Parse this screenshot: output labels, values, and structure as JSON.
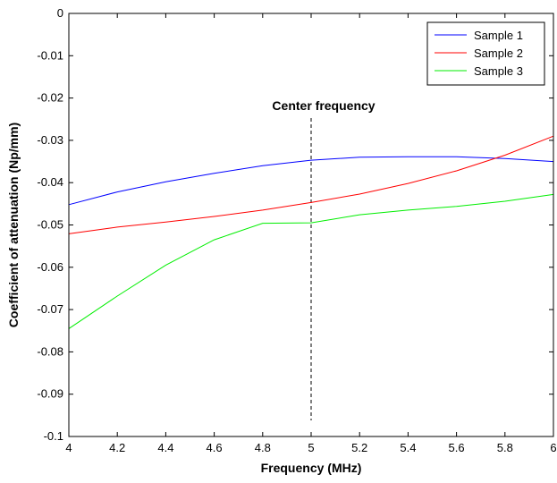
{
  "chart_data": {
    "type": "line",
    "xlabel": "Frequency (MHz)",
    "ylabel": "Coefficient of attenuation (Np/mm)",
    "xlim": [
      4,
      6
    ],
    "ylim": [
      -0.1,
      0
    ],
    "x_ticks": [
      4,
      4.2,
      4.4,
      4.6,
      4.8,
      5,
      5.2,
      5.4,
      5.6,
      5.8,
      6
    ],
    "x_tick_labels": [
      "4",
      "4.2",
      "4.4",
      "4.6",
      "4.8",
      "5",
      "5.2",
      "5.4",
      "5.6",
      "5.8",
      "6"
    ],
    "y_ticks": [
      0,
      -0.01,
      -0.02,
      -0.03,
      -0.04,
      -0.05,
      -0.06,
      -0.07,
      -0.08,
      -0.09,
      -0.1
    ],
    "y_tick_labels": [
      "0",
      "-0.01",
      "-0.02",
      "-0.03",
      "-0.04",
      "-0.05",
      "-0.06",
      "-0.07",
      "-0.08",
      "-0.09",
      "-0.1"
    ],
    "grid": false,
    "legend_position": "top-right",
    "x": [
      4.0,
      4.2,
      4.4,
      4.6,
      4.8,
      5.0,
      5.2,
      5.4,
      5.6,
      5.8,
      6.0
    ],
    "series": [
      {
        "name": "Sample 1",
        "color": "#0000ff",
        "values": [
          -0.0452,
          -0.0422,
          -0.0398,
          -0.0378,
          -0.036,
          -0.0347,
          -0.034,
          -0.0339,
          -0.0339,
          -0.0343,
          -0.035
        ]
      },
      {
        "name": "Sample 2",
        "color": "#ff0000",
        "values": [
          -0.0521,
          -0.0505,
          -0.0493,
          -0.048,
          -0.0465,
          -0.0447,
          -0.0427,
          -0.0402,
          -0.0372,
          -0.0335,
          -0.029
        ]
      },
      {
        "name": "Sample 3",
        "color": "#00ee00",
        "values": [
          -0.0745,
          -0.0668,
          -0.0595,
          -0.0535,
          -0.0496,
          -0.0495,
          -0.0476,
          -0.0465,
          -0.0456,
          -0.0444,
          -0.0428
        ]
      }
    ],
    "annotations": [
      {
        "text": "Center frequency",
        "x": 5.0,
        "style": "vertical-dashed-line"
      }
    ]
  }
}
